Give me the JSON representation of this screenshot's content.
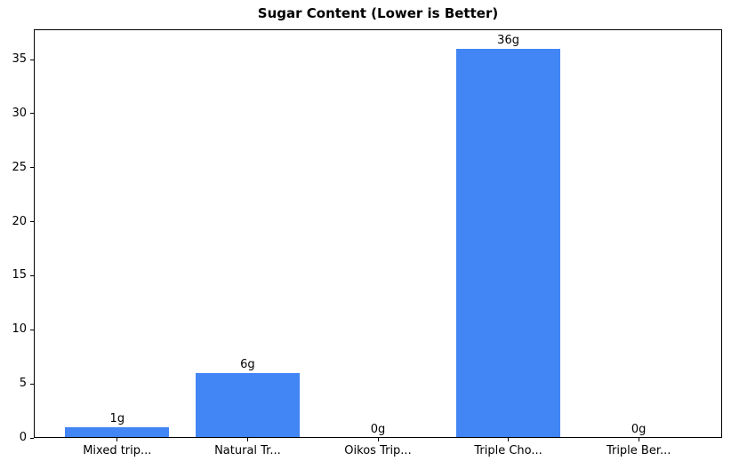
{
  "chart_data": {
    "type": "bar",
    "title": "Sugar Content (Lower is Better)",
    "categories": [
      "Mixed trip...",
      "Natural Tr...",
      "Oikos Trip...",
      "Triple Cho...",
      "Triple Ber..."
    ],
    "values": [
      1,
      6,
      0,
      36,
      0
    ],
    "value_labels": [
      "1g",
      "6g",
      "0g",
      "36g",
      "0g"
    ],
    "yticks": [
      0,
      5,
      10,
      15,
      20,
      25,
      30,
      35
    ],
    "ylim": [
      0,
      37.8
    ],
    "xlim": [
      -0.64,
      4.64
    ],
    "bar_width_units": 0.8,
    "bar_color": "#4285F4",
    "text_color": "#000000",
    "xlabel": "",
    "ylabel": "",
    "grid": false,
    "legend": false
  }
}
